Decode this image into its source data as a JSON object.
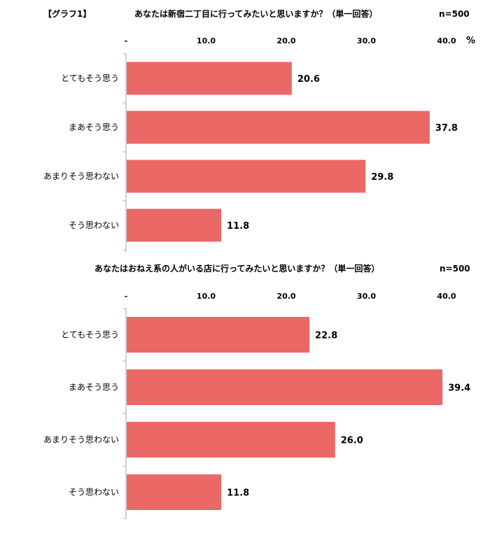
{
  "graph_label": "【グラフ1】",
  "unit_label": "%",
  "chart_data": [
    {
      "type": "bar",
      "title": "あなたは新宿二丁目に行ってみたいと思いますか？（単一回答）",
      "n_label": "n=500",
      "categories": [
        "とてもそう思う",
        "まあそう思う",
        "あまりそう思わない",
        "そう思わない"
      ],
      "values": [
        20.6,
        37.8,
        29.8,
        11.8
      ],
      "value_labels": [
        "20.6",
        "37.8",
        "29.8",
        "11.8"
      ],
      "xlim": [
        0,
        40
      ],
      "ticks": [
        {
          "value": 0,
          "label": "-"
        },
        {
          "value": 10,
          "label": "10.0"
        },
        {
          "value": 20,
          "label": "20.0"
        },
        {
          "value": 30,
          "label": "30.0"
        },
        {
          "value": 40,
          "label": "40.0"
        }
      ],
      "orientation": "horizontal",
      "bar_color": "#EA6866",
      "grid": false
    },
    {
      "type": "bar",
      "title": "あなたはおねえ系の人がいる店に行ってみたいと思いますか？（単一回答）",
      "n_label": "n=500",
      "categories": [
        "とてもそう思う",
        "まあそう思う",
        "あまりそう思わない",
        "そう思わない"
      ],
      "values": [
        22.8,
        39.4,
        26.0,
        11.8
      ],
      "value_labels": [
        "22.8",
        "39.4",
        "26.0",
        "11.8"
      ],
      "xlim": [
        0,
        40
      ],
      "ticks": [
        {
          "value": 0,
          "label": "-"
        },
        {
          "value": 10,
          "label": "10.0"
        },
        {
          "value": 20,
          "label": "20.0"
        },
        {
          "value": 30,
          "label": "30.0"
        },
        {
          "value": 40,
          "label": "40.0"
        }
      ],
      "orientation": "horizontal",
      "bar_color": "#EA6866",
      "grid": false
    }
  ]
}
